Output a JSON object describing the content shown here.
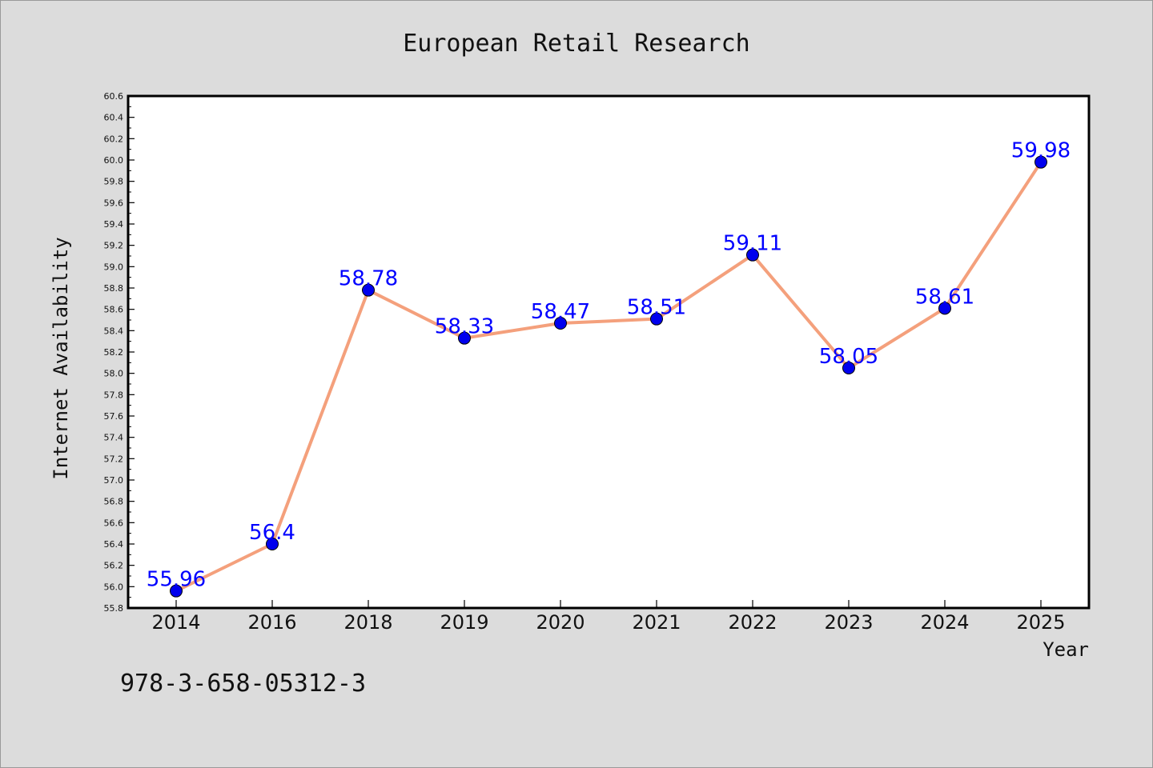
{
  "chart_data": {
    "type": "line",
    "title": "European Retail Research",
    "xlabel": "Year",
    "ylabel": "Internet Availability",
    "categories": [
      "2014",
      "2016",
      "2018",
      "2019",
      "2020",
      "2021",
      "2022",
      "2023",
      "2024",
      "2025"
    ],
    "series": [
      {
        "values": [
          55.96,
          56.4,
          58.78,
          58.33,
          58.47,
          58.51,
          59.11,
          58.05,
          58.61,
          59.98
        ],
        "data_labels": [
          "55.96",
          "56.4",
          "58.78",
          "58.33",
          "58.47",
          "58.51",
          "59.11",
          "58.05",
          "58.61",
          "59.98"
        ],
        "line_color": "#f4a07c",
        "marker_color": "#0000ee",
        "label_color": "#0000ff"
      }
    ],
    "ylim": [
      55.8,
      60.6
    ],
    "y_major_step": 0.2,
    "y_tick_labels": [
      "55.8",
      "56.0",
      "56.2",
      "56.4",
      "56.6",
      "56.8",
      "57.0",
      "57.2",
      "57.4",
      "57.6",
      "57.8",
      "58.0",
      "58.2",
      "58.4",
      "58.6",
      "58.8",
      "59.0",
      "59.2",
      "59.4",
      "59.6",
      "59.8",
      "60.0",
      "60.2",
      "60.4",
      "60.6"
    ],
    "grid": false,
    "legend": "none",
    "background": "#dcdcdc",
    "plot_background": "#ffffff"
  },
  "footer_code": "978-3-658-05312-3"
}
